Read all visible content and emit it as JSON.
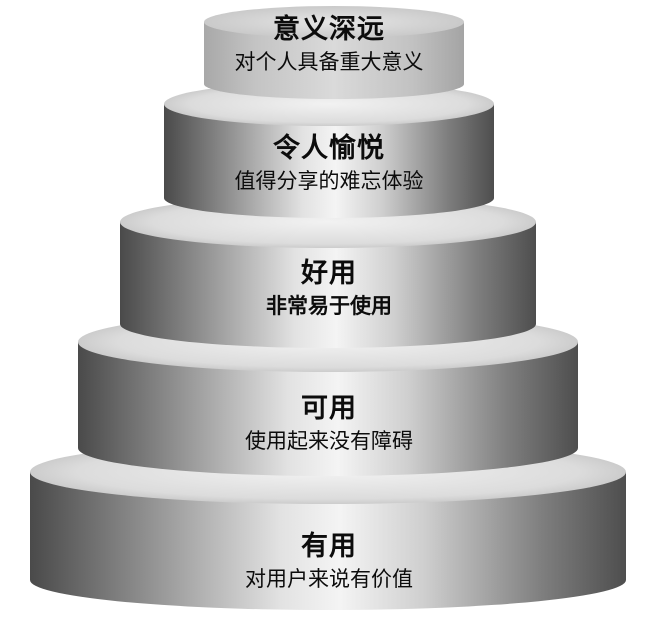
{
  "pyramid": {
    "tiers": [
      {
        "title": "意义深远",
        "description": "对个人具备重大意义",
        "description_bold": false
      },
      {
        "title": "令人愉悦",
        "description": "值得分享的难忘体验",
        "description_bold": false
      },
      {
        "title": "好用",
        "description": "非常易于使用",
        "description_bold": true
      },
      {
        "title": "可用",
        "description": "使用起来没有障碍",
        "description_bold": false
      },
      {
        "title": "有用",
        "description": "对用户来说有价值",
        "description_bold": false
      }
    ],
    "colors": {
      "top_tier": "#d2d2d2",
      "side_dark": "#4f4f4f",
      "side_light": "#f4f4f4",
      "top_face_light": "#f0f0f0",
      "text": "#0c0c0c"
    }
  }
}
